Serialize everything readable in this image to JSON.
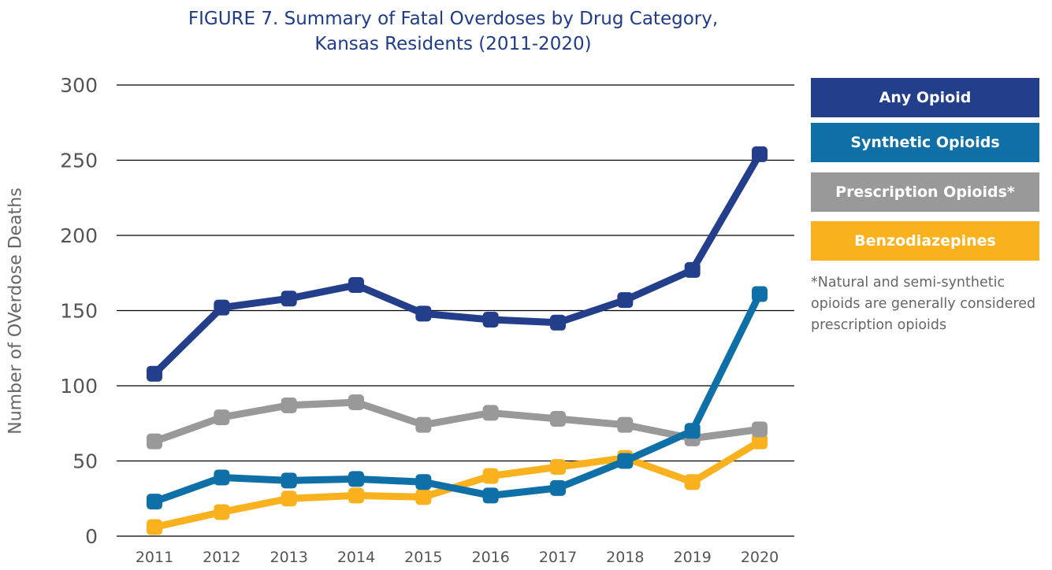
{
  "chart_data": {
    "type": "line",
    "title_lines": [
      "FIGURE 7. Summary of Fatal Overdoses by Drug Category,",
      "Kansas Residents (2011-2020)"
    ],
    "ylabel": "Number of OVerdose Deaths",
    "xlabel": "",
    "ylim": [
      0,
      300
    ],
    "yticks": [
      0,
      50,
      100,
      150,
      200,
      250,
      300
    ],
    "grid": true,
    "legend_position": "right",
    "x": [
      "2011",
      "2012",
      "2013",
      "2014",
      "2015",
      "2016",
      "2017",
      "2018",
      "2019",
      "2020"
    ],
    "series": [
      {
        "name": "Any Opioid",
        "color": "#233e8b",
        "values": [
          108,
          152,
          158,
          167,
          148,
          144,
          142,
          157,
          177,
          254
        ]
      },
      {
        "name": "Synthetic Opioids",
        "color": "#0f70a8",
        "values": [
          23,
          39,
          37,
          38,
          36,
          27,
          32,
          50,
          70,
          161
        ]
      },
      {
        "name": "Prescription Opioids*",
        "color": "#999999",
        "values": [
          63,
          79,
          87,
          89,
          74,
          82,
          78,
          74,
          65,
          71
        ]
      },
      {
        "name": "Benzodiazepines",
        "color": "#f9b21d",
        "values": [
          6,
          16,
          25,
          27,
          26,
          40,
          46,
          52,
          36,
          63
        ]
      }
    ],
    "footnote": "*Natural and semi-synthetic opioids are generally considered prescription opioids"
  }
}
